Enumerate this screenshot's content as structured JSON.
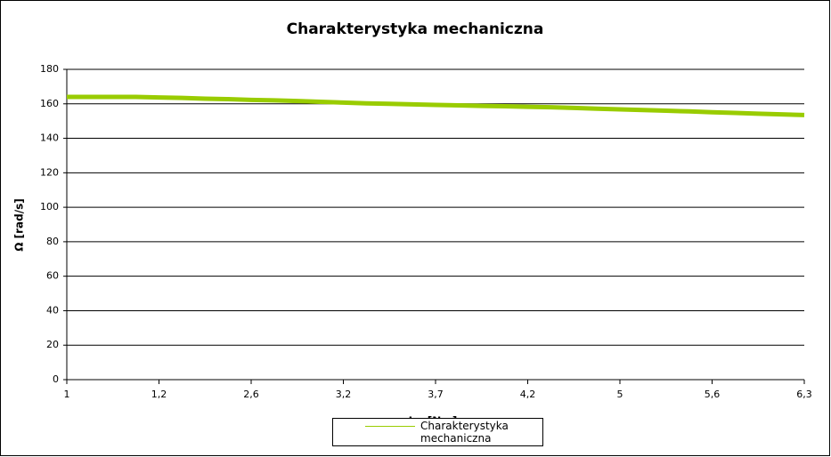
{
  "chart_data": {
    "type": "line",
    "title": "Charakterystyka mechaniczna",
    "x_label": "Im [Nm]",
    "y_label": "Ω [rad/s]",
    "categories": [
      "1",
      null,
      null,
      null,
      "1,2",
      null,
      null,
      null,
      "2,6",
      null,
      null,
      null,
      "3,2",
      null,
      null,
      null,
      "3,7",
      null,
      null,
      null,
      "4,2",
      null,
      null,
      null,
      "5",
      null,
      null,
      null,
      "5,6",
      null,
      null,
      null,
      "6,3"
    ],
    "series": [
      {
        "name": "Charakterystyka mechaniczna",
        "color": "#99cc00",
        "values": [
          164,
          164,
          164,
          164,
          163.7,
          163.4,
          163,
          162.7,
          162.3,
          162,
          161.6,
          161.2,
          160.7,
          160.3,
          160,
          159.7,
          159.4,
          159.1,
          158.8,
          158.6,
          158.3,
          158,
          157.6,
          157.2,
          156.8,
          156.4,
          156,
          155.6,
          155.1,
          154.7,
          154.3,
          153.9,
          153.5
        ]
      }
    ],
    "ylim": [
      0,
      180
    ],
    "yticks": [
      0,
      20,
      40,
      60,
      80,
      100,
      120,
      140,
      160,
      180
    ],
    "grid": true,
    "legend": "bottom"
  }
}
